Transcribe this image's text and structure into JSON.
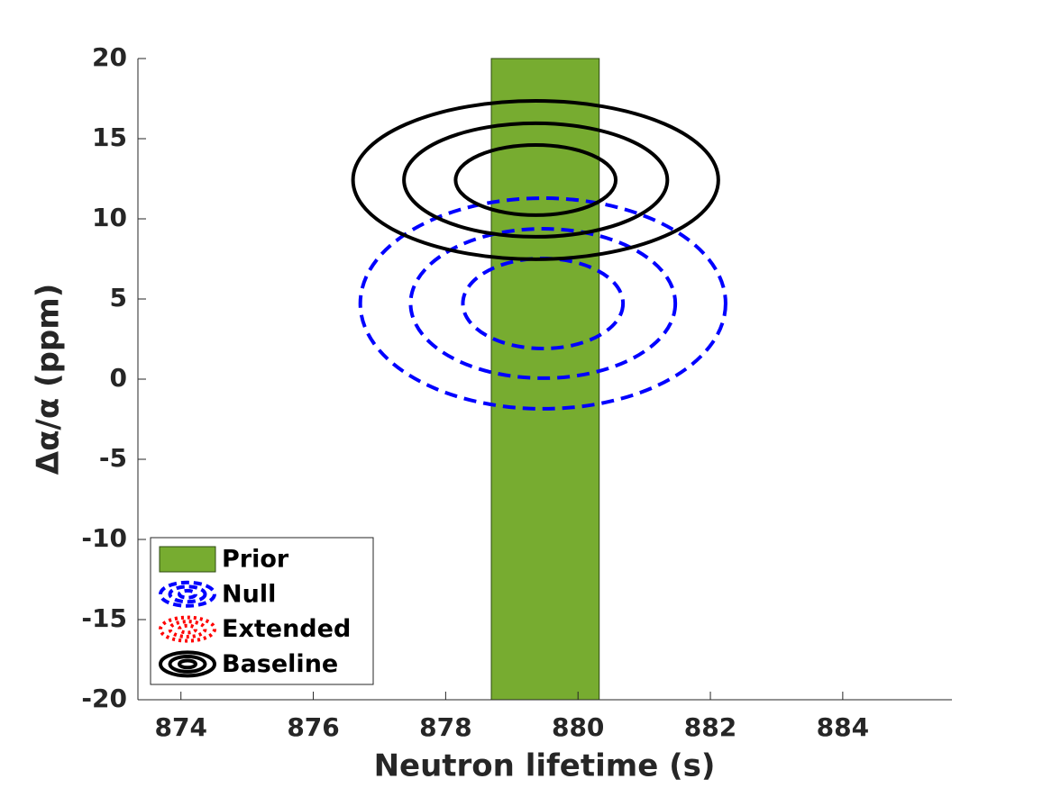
{
  "chart_data": {
    "type": "contour",
    "xlabel": "Neutron lifetime (s)",
    "ylabel": "Δα/α (ppm)",
    "xlim": [
      873.35,
      885.65
    ],
    "ylim": [
      -20,
      20
    ],
    "xticks": [
      874,
      876,
      878,
      880,
      882,
      884
    ],
    "yticks": [
      -20,
      -15,
      -10,
      -5,
      0,
      5,
      10,
      15,
      20
    ],
    "legend": "lower left",
    "series": [
      {
        "name": "Prior",
        "kind": "band",
        "color": "#77ac30",
        "x": [
          878.69,
          880.32
        ]
      },
      {
        "name": "Null",
        "kind": "contour",
        "color": "#0000ff",
        "linestyle": "dashed",
        "center": [
          879.47,
          4.72
        ],
        "radii": [
          [
            1.21,
            2.81
          ],
          [
            2.0,
            4.66
          ],
          [
            2.76,
            6.57
          ]
        ]
      },
      {
        "name": "Extended",
        "kind": "contour",
        "color": "#ff0000",
        "linestyle": "dotted"
      },
      {
        "name": "Baseline",
        "kind": "contour",
        "color": "#000000",
        "linestyle": "solid",
        "center": [
          879.36,
          12.42
        ],
        "radii": [
          [
            1.21,
            2.19
          ],
          [
            1.99,
            3.54
          ],
          [
            2.76,
            4.94
          ]
        ]
      }
    ]
  }
}
